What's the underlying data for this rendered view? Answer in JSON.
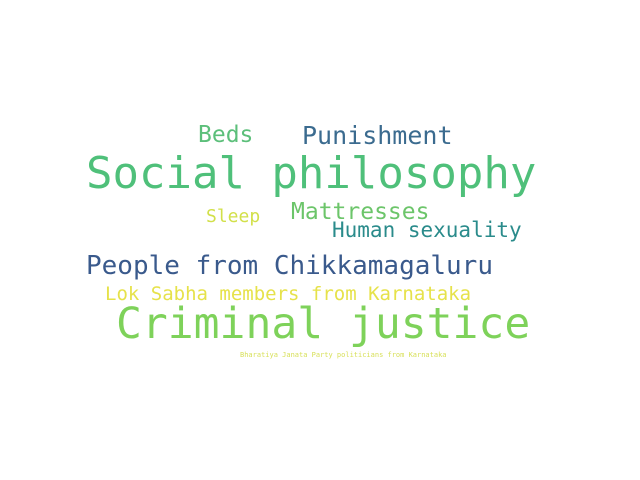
{
  "words": [
    {
      "text": "Beds",
      "color": "#5cbf7a"
    },
    {
      "text": "Punishment",
      "color": "#3b6b8f"
    },
    {
      "text": "Social philosophy",
      "color": "#4fc07a"
    },
    {
      "text": "Mattresses",
      "color": "#6cc56a"
    },
    {
      "text": "Sleep",
      "color": "#d2e04a"
    },
    {
      "text": "Human sexuality",
      "color": "#2a8b8b"
    },
    {
      "text": "People from Chikkamagaluru",
      "color": "#3a5a8c"
    },
    {
      "text": "Lok Sabha members from Karnataka",
      "color": "#e6e24a"
    },
    {
      "text": "Criminal justice",
      "color": "#7ed25a"
    },
    {
      "text": "Bharatiya Janata Party politicians from Karnataka",
      "color": "#d8e05a"
    }
  ]
}
